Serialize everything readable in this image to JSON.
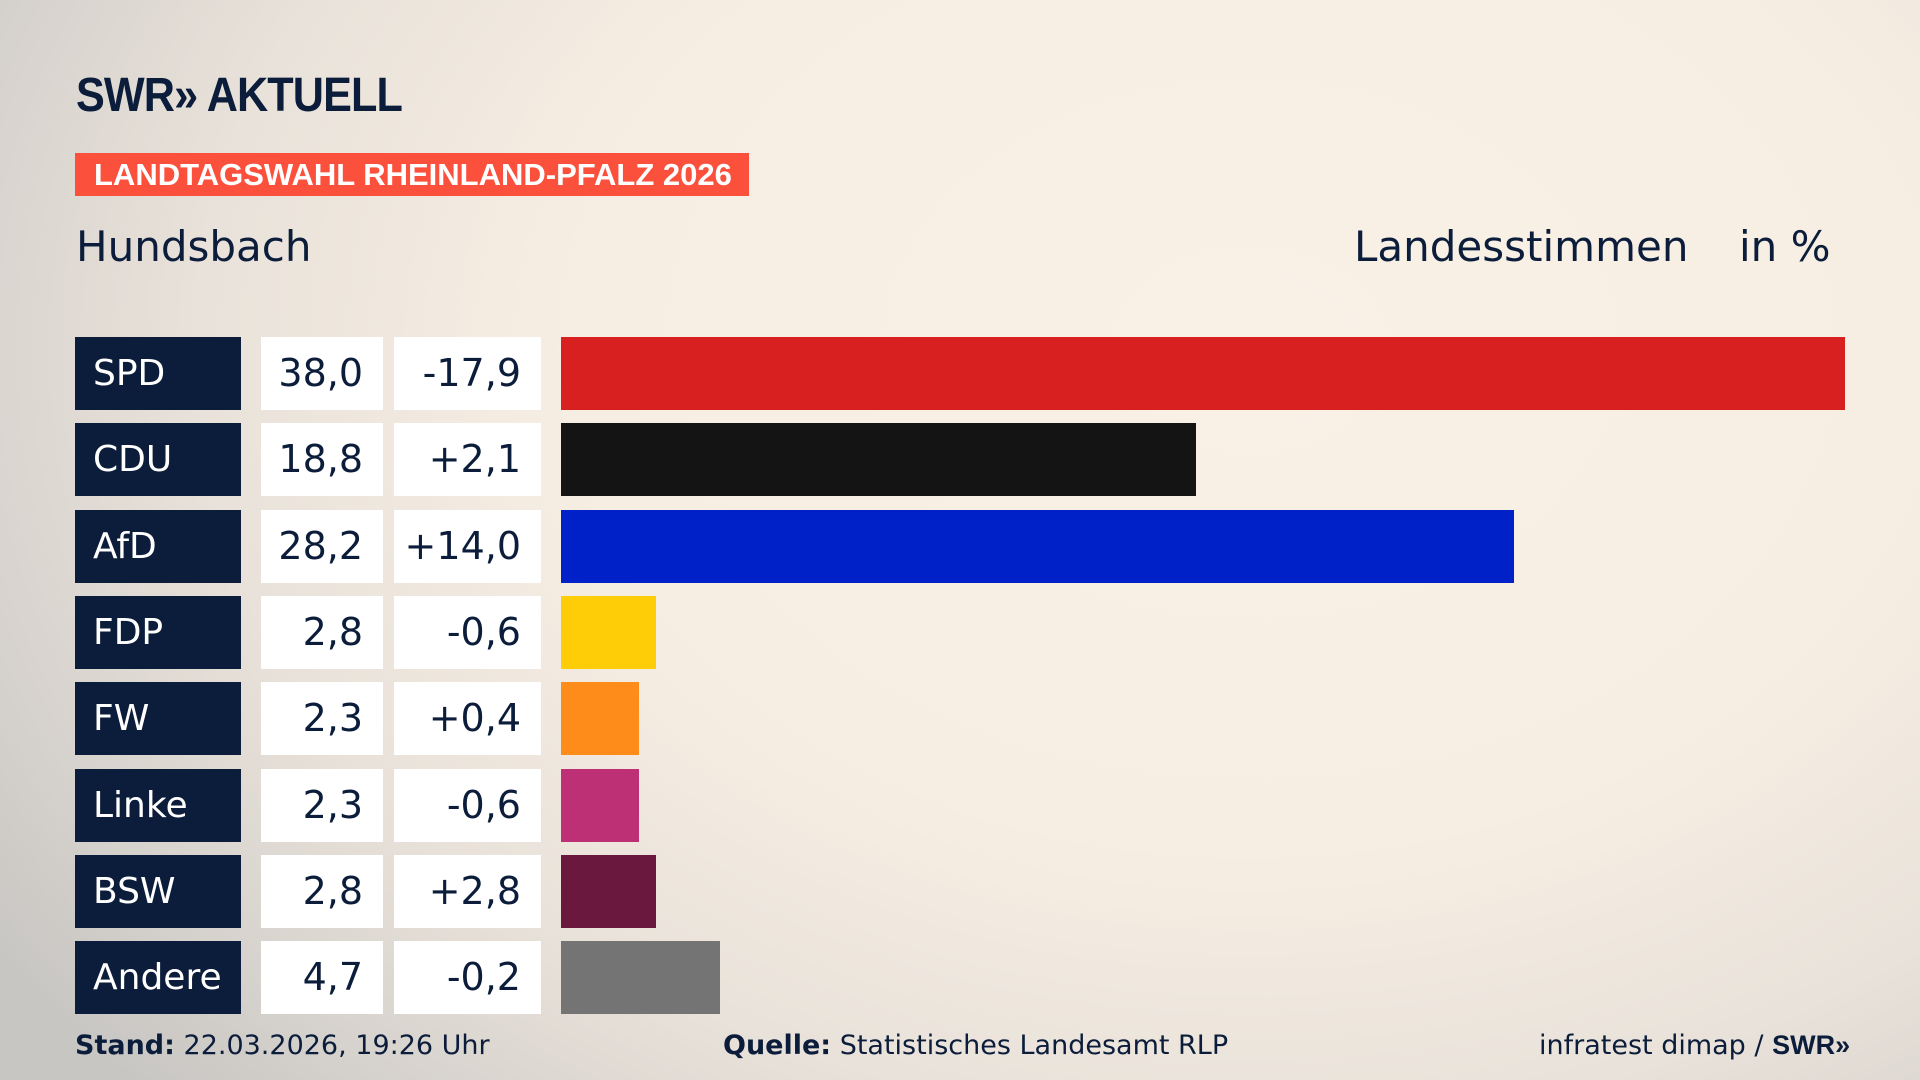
{
  "header": {
    "logo_text": "SWR» AKTUELL",
    "banner": "LANDTAGSWAHL RHEINLAND-PFALZ 2026",
    "place": "Hundsbach",
    "metric": "Landesstimmen",
    "unit": "in %"
  },
  "colors": {
    "banner": "#fb503c",
    "label_bg": "#0b1d3a"
  },
  "chart_data": {
    "type": "bar",
    "orientation": "horizontal",
    "categories": [
      "SPD",
      "CDU",
      "AfD",
      "FDP",
      "FW",
      "Linke",
      "BSW",
      "Andere"
    ],
    "values": [
      38.0,
      18.8,
      28.2,
      2.8,
      2.3,
      2.3,
      2.8,
      4.7
    ],
    "value_labels": [
      "38,0",
      "18,8",
      "28,2",
      "2,8",
      "2,3",
      "2,3",
      "2,8",
      "4,7"
    ],
    "change_labels": [
      "-17,9",
      "+2,1",
      "+14,0",
      "-0,6",
      "+0,4",
      "-0,6",
      "+2,8",
      "-0,2"
    ],
    "colors": [
      "#d82020",
      "#141414",
      "#0021c8",
      "#fecd08",
      "#fe8c1a",
      "#be3075",
      "#6a183e",
      "#747474"
    ],
    "xlim": [
      0,
      38.0
    ]
  },
  "footer": {
    "stand_label": "Stand:",
    "stand_value": "22.03.2026, 19:26 Uhr",
    "source_label": "Quelle:",
    "source_value": "Statistisches Landesamt RLP",
    "credit": "infratest dimap /",
    "credit_logo": "SWR»"
  }
}
